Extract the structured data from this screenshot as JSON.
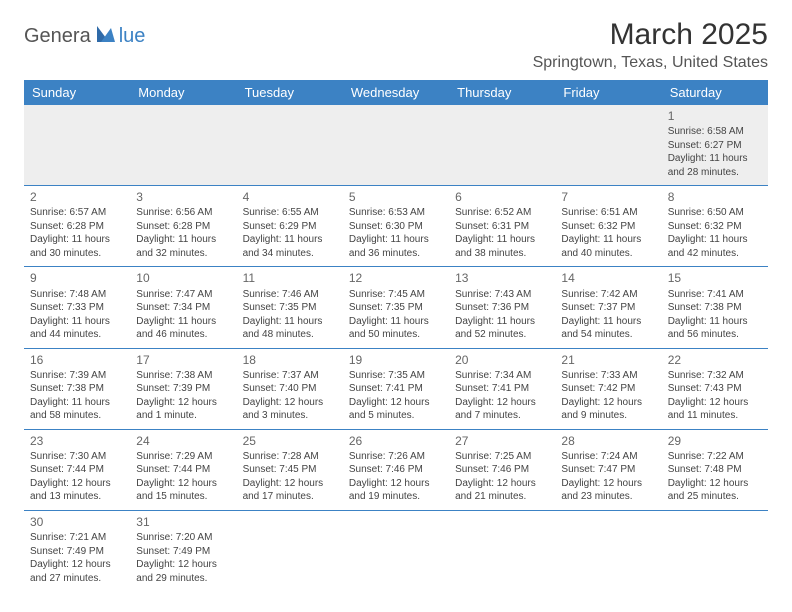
{
  "logo": {
    "part1": "Genera",
    "part2": "lue"
  },
  "title": "March 2025",
  "location": "Springtown, Texas, United States",
  "colors": {
    "header_bg": "#3c82c4",
    "header_text": "#ffffff",
    "row1_bg": "#eeeeee",
    "border": "#3c82c4",
    "logo_blue": "#3c82c4",
    "logo_gray": "#555555"
  },
  "weekdays": [
    "Sunday",
    "Monday",
    "Tuesday",
    "Wednesday",
    "Thursday",
    "Friday",
    "Saturday"
  ],
  "weeks": [
    [
      null,
      null,
      null,
      null,
      null,
      null,
      {
        "n": "1",
        "sr": "Sunrise: 6:58 AM",
        "ss": "Sunset: 6:27 PM",
        "d1": "Daylight: 11 hours",
        "d2": "and 28 minutes."
      }
    ],
    [
      {
        "n": "2",
        "sr": "Sunrise: 6:57 AM",
        "ss": "Sunset: 6:28 PM",
        "d1": "Daylight: 11 hours",
        "d2": "and 30 minutes."
      },
      {
        "n": "3",
        "sr": "Sunrise: 6:56 AM",
        "ss": "Sunset: 6:28 PM",
        "d1": "Daylight: 11 hours",
        "d2": "and 32 minutes."
      },
      {
        "n": "4",
        "sr": "Sunrise: 6:55 AM",
        "ss": "Sunset: 6:29 PM",
        "d1": "Daylight: 11 hours",
        "d2": "and 34 minutes."
      },
      {
        "n": "5",
        "sr": "Sunrise: 6:53 AM",
        "ss": "Sunset: 6:30 PM",
        "d1": "Daylight: 11 hours",
        "d2": "and 36 minutes."
      },
      {
        "n": "6",
        "sr": "Sunrise: 6:52 AM",
        "ss": "Sunset: 6:31 PM",
        "d1": "Daylight: 11 hours",
        "d2": "and 38 minutes."
      },
      {
        "n": "7",
        "sr": "Sunrise: 6:51 AM",
        "ss": "Sunset: 6:32 PM",
        "d1": "Daylight: 11 hours",
        "d2": "and 40 minutes."
      },
      {
        "n": "8",
        "sr": "Sunrise: 6:50 AM",
        "ss": "Sunset: 6:32 PM",
        "d1": "Daylight: 11 hours",
        "d2": "and 42 minutes."
      }
    ],
    [
      {
        "n": "9",
        "sr": "Sunrise: 7:48 AM",
        "ss": "Sunset: 7:33 PM",
        "d1": "Daylight: 11 hours",
        "d2": "and 44 minutes."
      },
      {
        "n": "10",
        "sr": "Sunrise: 7:47 AM",
        "ss": "Sunset: 7:34 PM",
        "d1": "Daylight: 11 hours",
        "d2": "and 46 minutes."
      },
      {
        "n": "11",
        "sr": "Sunrise: 7:46 AM",
        "ss": "Sunset: 7:35 PM",
        "d1": "Daylight: 11 hours",
        "d2": "and 48 minutes."
      },
      {
        "n": "12",
        "sr": "Sunrise: 7:45 AM",
        "ss": "Sunset: 7:35 PM",
        "d1": "Daylight: 11 hours",
        "d2": "and 50 minutes."
      },
      {
        "n": "13",
        "sr": "Sunrise: 7:43 AM",
        "ss": "Sunset: 7:36 PM",
        "d1": "Daylight: 11 hours",
        "d2": "and 52 minutes."
      },
      {
        "n": "14",
        "sr": "Sunrise: 7:42 AM",
        "ss": "Sunset: 7:37 PM",
        "d1": "Daylight: 11 hours",
        "d2": "and 54 minutes."
      },
      {
        "n": "15",
        "sr": "Sunrise: 7:41 AM",
        "ss": "Sunset: 7:38 PM",
        "d1": "Daylight: 11 hours",
        "d2": "and 56 minutes."
      }
    ],
    [
      {
        "n": "16",
        "sr": "Sunrise: 7:39 AM",
        "ss": "Sunset: 7:38 PM",
        "d1": "Daylight: 11 hours",
        "d2": "and 58 minutes."
      },
      {
        "n": "17",
        "sr": "Sunrise: 7:38 AM",
        "ss": "Sunset: 7:39 PM",
        "d1": "Daylight: 12 hours",
        "d2": "and 1 minute."
      },
      {
        "n": "18",
        "sr": "Sunrise: 7:37 AM",
        "ss": "Sunset: 7:40 PM",
        "d1": "Daylight: 12 hours",
        "d2": "and 3 minutes."
      },
      {
        "n": "19",
        "sr": "Sunrise: 7:35 AM",
        "ss": "Sunset: 7:41 PM",
        "d1": "Daylight: 12 hours",
        "d2": "and 5 minutes."
      },
      {
        "n": "20",
        "sr": "Sunrise: 7:34 AM",
        "ss": "Sunset: 7:41 PM",
        "d1": "Daylight: 12 hours",
        "d2": "and 7 minutes."
      },
      {
        "n": "21",
        "sr": "Sunrise: 7:33 AM",
        "ss": "Sunset: 7:42 PM",
        "d1": "Daylight: 12 hours",
        "d2": "and 9 minutes."
      },
      {
        "n": "22",
        "sr": "Sunrise: 7:32 AM",
        "ss": "Sunset: 7:43 PM",
        "d1": "Daylight: 12 hours",
        "d2": "and 11 minutes."
      }
    ],
    [
      {
        "n": "23",
        "sr": "Sunrise: 7:30 AM",
        "ss": "Sunset: 7:44 PM",
        "d1": "Daylight: 12 hours",
        "d2": "and 13 minutes."
      },
      {
        "n": "24",
        "sr": "Sunrise: 7:29 AM",
        "ss": "Sunset: 7:44 PM",
        "d1": "Daylight: 12 hours",
        "d2": "and 15 minutes."
      },
      {
        "n": "25",
        "sr": "Sunrise: 7:28 AM",
        "ss": "Sunset: 7:45 PM",
        "d1": "Daylight: 12 hours",
        "d2": "and 17 minutes."
      },
      {
        "n": "26",
        "sr": "Sunrise: 7:26 AM",
        "ss": "Sunset: 7:46 PM",
        "d1": "Daylight: 12 hours",
        "d2": "and 19 minutes."
      },
      {
        "n": "27",
        "sr": "Sunrise: 7:25 AM",
        "ss": "Sunset: 7:46 PM",
        "d1": "Daylight: 12 hours",
        "d2": "and 21 minutes."
      },
      {
        "n": "28",
        "sr": "Sunrise: 7:24 AM",
        "ss": "Sunset: 7:47 PM",
        "d1": "Daylight: 12 hours",
        "d2": "and 23 minutes."
      },
      {
        "n": "29",
        "sr": "Sunrise: 7:22 AM",
        "ss": "Sunset: 7:48 PM",
        "d1": "Daylight: 12 hours",
        "d2": "and 25 minutes."
      }
    ],
    [
      {
        "n": "30",
        "sr": "Sunrise: 7:21 AM",
        "ss": "Sunset: 7:49 PM",
        "d1": "Daylight: 12 hours",
        "d2": "and 27 minutes."
      },
      {
        "n": "31",
        "sr": "Sunrise: 7:20 AM",
        "ss": "Sunset: 7:49 PM",
        "d1": "Daylight: 12 hours",
        "d2": "and 29 minutes."
      },
      null,
      null,
      null,
      null,
      null
    ]
  ]
}
